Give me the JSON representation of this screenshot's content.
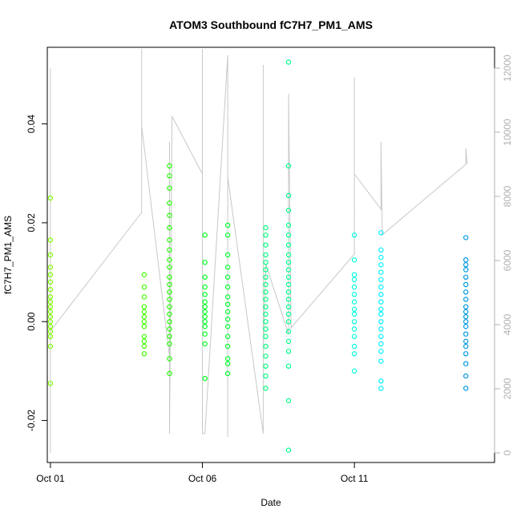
{
  "chart_data": {
    "type": "scatter",
    "title": "ATOM3 Southbound fC7H7_PM1_AMS",
    "xlabel": "Date",
    "ylabel": "fC7H7_PM1_AMS",
    "xlim": [
      "2016-09-30T21:30",
      "2016-10-15T14:40"
    ],
    "ylim": [
      -0.0285,
      0.0555
    ],
    "y2lim": [
      -300,
      12650
    ],
    "x_ticks": [
      {
        "value": "2016-10-01T00:00",
        "label": "Oct 01"
      },
      {
        "value": "2016-10-06T00:00",
        "label": "Oct 06"
      },
      {
        "value": "2016-10-11T00:00",
        "label": "Oct 11"
      }
    ],
    "y_ticks": [
      {
        "value": -0.02,
        "label": "-0.02"
      },
      {
        "value": 0.0,
        "label": "0.00"
      },
      {
        "value": 0.02,
        "label": "0.02"
      },
      {
        "value": 0.04,
        "label": "0.04"
      }
    ],
    "y2_ticks": [
      {
        "value": 0,
        "label": "0"
      },
      {
        "value": 2000,
        "label": "2000"
      },
      {
        "value": 4000,
        "label": "4000"
      },
      {
        "value": 6000,
        "label": "6000"
      },
      {
        "value": 8000,
        "label": "8000"
      },
      {
        "value": 10000,
        "label": "10000"
      },
      {
        "value": 12000,
        "label": "12000"
      }
    ],
    "grid": false,
    "legend": "none",
    "altitude_color": "#c8c8c8",
    "series": [
      {
        "color": "#80ff00",
        "x": [
          "2016-10-01T00:00",
          "2016-10-01T00:00",
          "2016-10-01T00:00",
          "2016-10-01T00:00",
          "2016-10-01T00:00",
          "2016-10-01T00:00",
          "2016-10-01T00:00",
          "2016-10-01T00:00",
          "2016-10-01T00:00",
          "2016-10-01T00:00",
          "2016-10-01T00:00",
          "2016-10-01T00:00",
          "2016-10-01T00:00",
          "2016-10-01T00:00",
          "2016-10-01T00:00",
          "2016-10-01T00:00",
          "2016-10-01T00:00",
          "2016-10-01T00:00"
        ],
        "y": [
          0.025,
          0.0165,
          0.0135,
          0.011,
          0.0095,
          0.008,
          0.0065,
          0.005,
          0.004,
          0.003,
          0.002,
          0.001,
          0.0,
          -0.001,
          -0.002,
          -0.003,
          -0.005,
          -0.0125
        ]
      },
      {
        "color": "#40ff00",
        "x": [
          "2016-10-04T02:00",
          "2016-10-04T02:00",
          "2016-10-04T02:00",
          "2016-10-04T02:00",
          "2016-10-04T02:00",
          "2016-10-04T02:00",
          "2016-10-04T02:00",
          "2016-10-04T02:00",
          "2016-10-04T02:00",
          "2016-10-04T02:00",
          "2016-10-04T02:00",
          "2016-10-04T02:00"
        ],
        "y": [
          0.0095,
          0.007,
          0.005,
          0.003,
          0.002,
          0.001,
          0.0,
          -0.001,
          -0.003,
          -0.004,
          -0.005,
          -0.0065
        ]
      },
      {
        "color": "#20ff00",
        "x": [
          "2016-10-04T22:00",
          "2016-10-04T22:00",
          "2016-10-04T22:00",
          "2016-10-04T22:00",
          "2016-10-04T22:00",
          "2016-10-04T22:00",
          "2016-10-04T22:00",
          "2016-10-04T22:00",
          "2016-10-04T22:00",
          "2016-10-04T22:00",
          "2016-10-04T22:00",
          "2016-10-04T22:00",
          "2016-10-04T22:00",
          "2016-10-04T22:00",
          "2016-10-04T22:00",
          "2016-10-04T22:00",
          "2016-10-04T22:00",
          "2016-10-04T22:00",
          "2016-10-04T22:00",
          "2016-10-04T22:00",
          "2016-10-04T22:00",
          "2016-10-04T22:00"
        ],
        "y": [
          0.0315,
          0.0295,
          0.027,
          0.024,
          0.0215,
          0.019,
          0.0165,
          0.0145,
          0.0125,
          0.011,
          0.009,
          0.0075,
          0.006,
          0.0045,
          0.003,
          0.0015,
          0.0,
          -0.0015,
          -0.003,
          -0.0045,
          -0.0075,
          -0.0105
        ]
      },
      {
        "color": "#00ff20",
        "x": [
          "2016-10-06T02:00",
          "2016-10-06T02:00",
          "2016-10-06T02:00",
          "2016-10-06T02:00",
          "2016-10-06T02:00",
          "2016-10-06T02:00",
          "2016-10-06T02:00",
          "2016-10-06T02:00",
          "2016-10-06T02:00",
          "2016-10-06T02:00",
          "2016-10-06T02:00",
          "2016-10-06T02:00",
          "2016-10-06T02:00",
          "2016-10-06T02:00"
        ],
        "y": [
          0.0175,
          0.012,
          0.009,
          0.007,
          0.0055,
          0.004,
          0.003,
          0.002,
          0.001,
          0.0,
          -0.001,
          -0.0025,
          -0.0045,
          -0.0115
        ]
      },
      {
        "color": "#00ff30",
        "x": [
          "2016-10-06T20:00",
          "2016-10-06T20:00",
          "2016-10-06T20:00",
          "2016-10-06T20:00",
          "2016-10-06T20:00",
          "2016-10-06T20:00",
          "2016-10-06T20:00",
          "2016-10-06T20:00",
          "2016-10-06T20:00",
          "2016-10-06T20:00",
          "2016-10-06T20:00",
          "2016-10-06T20:00",
          "2016-10-06T20:00",
          "2016-10-06T20:00",
          "2016-10-06T20:00",
          "2016-10-06T20:00"
        ],
        "y": [
          0.0195,
          0.0175,
          0.0135,
          0.011,
          0.009,
          0.007,
          0.005,
          0.0035,
          0.002,
          0.0005,
          -0.001,
          -0.003,
          -0.005,
          -0.0075,
          -0.0085,
          -0.0105
        ]
      },
      {
        "color": "#00ff80",
        "x": [
          "2016-10-08T02:00",
          "2016-10-08T02:00",
          "2016-10-08T02:00",
          "2016-10-08T02:00",
          "2016-10-08T02:00",
          "2016-10-08T02:00",
          "2016-10-08T02:00",
          "2016-10-08T02:00",
          "2016-10-08T02:00",
          "2016-10-08T02:00",
          "2016-10-08T02:00",
          "2016-10-08T02:00",
          "2016-10-08T02:00",
          "2016-10-08T02:00",
          "2016-10-08T02:00",
          "2016-10-08T02:00",
          "2016-10-08T02:00",
          "2016-10-08T02:00",
          "2016-10-08T02:00",
          "2016-10-08T02:00"
        ],
        "y": [
          0.019,
          0.0175,
          0.0155,
          0.0135,
          0.012,
          0.0105,
          0.009,
          0.0075,
          0.006,
          0.0045,
          0.003,
          0.0015,
          0.0,
          -0.0015,
          -0.003,
          -0.005,
          -0.007,
          -0.009,
          -0.011,
          -0.0135
        ]
      },
      {
        "color": "#00ff90",
        "x": [
          "2016-10-08T20:00",
          "2016-10-08T20:00",
          "2016-10-08T20:00",
          "2016-10-08T20:00",
          "2016-10-08T20:00",
          "2016-10-08T20:00",
          "2016-10-08T20:00",
          "2016-10-08T20:00",
          "2016-10-08T20:00",
          "2016-10-08T20:00",
          "2016-10-08T20:00",
          "2016-10-08T20:00",
          "2016-10-08T20:00",
          "2016-10-08T20:00",
          "2016-10-08T20:00",
          "2016-10-08T20:00",
          "2016-10-08T20:00",
          "2016-10-08T20:00",
          "2016-10-08T20:00",
          "2016-10-08T20:00",
          "2016-10-08T20:00",
          "2016-10-08T20:00",
          "2016-10-08T20:00"
        ],
        "y": [
          0.0525,
          0.0315,
          0.0255,
          0.0225,
          0.0195,
          0.0175,
          0.0155,
          0.0135,
          0.012,
          0.0105,
          0.009,
          0.0075,
          0.006,
          0.0045,
          0.003,
          0.0015,
          0.0,
          -0.002,
          -0.004,
          -0.006,
          -0.009,
          -0.016,
          -0.026
        ]
      },
      {
        "color": "#00ffe0",
        "x": [
          "2016-10-11T00:00",
          "2016-10-11T00:00",
          "2016-10-11T00:00",
          "2016-10-11T00:00",
          "2016-10-11T00:00",
          "2016-10-11T00:00",
          "2016-10-11T00:00",
          "2016-10-11T00:00",
          "2016-10-11T00:00",
          "2016-10-11T00:00",
          "2016-10-11T00:00",
          "2016-10-11T00:00",
          "2016-10-11T00:00",
          "2016-10-11T00:00",
          "2016-10-11T00:00"
        ],
        "y": [
          0.0175,
          0.0125,
          0.0095,
          0.0085,
          0.007,
          0.0055,
          0.004,
          0.0025,
          0.0015,
          0.0,
          -0.0015,
          -0.003,
          -0.005,
          -0.0065,
          -0.01
        ]
      },
      {
        "color": "#00f0ff",
        "x": [
          "2016-10-11T21:00",
          "2016-10-11T21:00",
          "2016-10-11T21:00",
          "2016-10-11T21:00",
          "2016-10-11T21:00",
          "2016-10-11T21:00",
          "2016-10-11T21:00",
          "2016-10-11T21:00",
          "2016-10-11T21:00",
          "2016-10-11T21:00",
          "2016-10-11T21:00",
          "2016-10-11T21:00",
          "2016-10-11T21:00",
          "2016-10-11T21:00",
          "2016-10-11T21:00",
          "2016-10-11T21:00",
          "2016-10-11T21:00",
          "2016-10-11T21:00",
          "2016-10-11T21:00"
        ],
        "y": [
          0.018,
          0.0145,
          0.013,
          0.0115,
          0.01,
          0.0085,
          0.007,
          0.0055,
          0.004,
          0.0025,
          0.0015,
          0.0,
          -0.0015,
          -0.003,
          -0.0045,
          -0.006,
          -0.008,
          -0.012,
          -0.0135
        ]
      },
      {
        "color": "#0098e0",
        "x": [
          "2016-10-14T16:00",
          "2016-10-14T16:00",
          "2016-10-14T16:00",
          "2016-10-14T16:00",
          "2016-10-14T16:00",
          "2016-10-14T16:00",
          "2016-10-14T16:00",
          "2016-10-14T16:00",
          "2016-10-14T16:00",
          "2016-10-14T16:00",
          "2016-10-14T16:00",
          "2016-10-14T16:00",
          "2016-10-14T16:00",
          "2016-10-14T16:00",
          "2016-10-14T16:00",
          "2016-10-14T16:00",
          "2016-10-14T16:00",
          "2016-10-14T16:00",
          "2016-10-14T16:00",
          "2016-10-14T16:00"
        ],
        "y": [
          0.017,
          0.0125,
          0.0115,
          0.0105,
          0.009,
          0.0075,
          0.006,
          0.0045,
          0.003,
          0.002,
          0.001,
          0.0,
          -0.001,
          -0.0025,
          -0.004,
          -0.005,
          -0.0065,
          -0.0085,
          -0.011,
          -0.0135
        ]
      }
    ],
    "altitude": {
      "x": [
        "2016-10-01T00:00",
        "2016-10-01T00:00",
        "2016-10-01T00:00",
        "2016-10-04T00:00",
        "2016-10-04T00:00",
        "2016-10-04T00:00",
        "2016-10-04T22:00",
        "2016-10-04T22:00",
        "2016-10-04T22:00",
        "2016-10-05T00:00",
        "2016-10-06T00:00",
        "2016-10-06T00:00",
        "2016-10-06T00:00",
        "2016-10-06T02:00",
        "2016-10-06T20:00",
        "2016-10-06T20:00",
        "2016-10-06T20:00",
        "2016-10-08T00:00",
        "2016-10-08T00:00",
        "2016-10-08T00:00",
        "2016-10-08T02:00",
        "2016-10-08T20:00",
        "2016-10-08T20:00",
        "2016-10-08T22:00",
        "2016-10-11T00:00",
        "2016-10-11T00:00",
        "2016-10-11T00:00",
        "2016-10-11T21:00",
        "2016-10-11T21:00",
        "2016-10-11T22:00",
        "2016-10-14T16:00",
        "2016-10-14T16:00",
        "2016-10-14T17:00"
      ],
      "y": [
        0,
        12000,
        3800,
        7500,
        12600,
        10200,
        3000,
        9700,
        600,
        10500,
        8700,
        12600,
        600,
        600,
        12400,
        500,
        8600,
        600,
        12100,
        3200,
        5900,
        3700,
        11200,
        3900,
        6200,
        11700,
        8700,
        7600,
        9700,
        6800,
        9000,
        9500,
        9000
      ]
    }
  }
}
